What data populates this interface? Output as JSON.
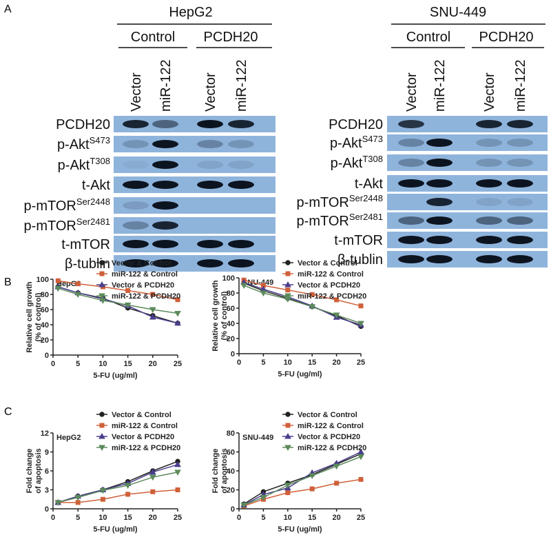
{
  "panel_labels": [
    "A",
    "B",
    "C"
  ],
  "blots": [
    {
      "cell_line": "HepG2",
      "groups": [
        "Control",
        "PCDH20"
      ],
      "lanes": [
        "Vector",
        "miR-122",
        "Vector",
        "miR-122"
      ],
      "rows": [
        {
          "label": "PCDH20"
        },
        {
          "label": "p-Akt",
          "sup": "S473"
        },
        {
          "label": "p-Akt",
          "sup": "T308"
        },
        {
          "label": "t-Akt"
        },
        {
          "label": "p-mTOR",
          "sup": "Ser2448"
        },
        {
          "label": "p-mTOR",
          "sup": "Ser2481"
        },
        {
          "label": "t-mTOR"
        },
        {
          "label": "β-tublin"
        }
      ]
    },
    {
      "cell_line": "SNU-449",
      "groups": [
        "Control",
        "PCDH20"
      ],
      "lanes": [
        "Vector",
        "miR-122",
        "Vector",
        "miR-122"
      ],
      "rows": [
        {
          "label": "PCDH20"
        },
        {
          "label": "p-Akt",
          "sup": "S473"
        },
        {
          "label": "p-Akt",
          "sup": "T308"
        },
        {
          "label": "t-Akt"
        },
        {
          "label": "p-mTOR",
          "sup": "Ser2448"
        },
        {
          "label": "p-mTOR",
          "sup": "Ser2481"
        },
        {
          "label": "t-mTOR"
        },
        {
          "label": "β-tublin"
        }
      ]
    }
  ],
  "chart_data": [
    {
      "type": "line",
      "title": "HepG2",
      "xlabel": "5-FU (ug/ml)",
      "ylabel": [
        "Relative cell growth",
        "(% of control)"
      ],
      "x": [
        1,
        5,
        10,
        15,
        20,
        25
      ],
      "xlim": [
        0,
        25
      ],
      "xticks": [
        0,
        5,
        10,
        15,
        20,
        25
      ],
      "ylim": [
        0,
        100
      ],
      "yticks": [
        0,
        20,
        40,
        60,
        80,
        100
      ],
      "series": [
        {
          "name": "Vector & Control",
          "color": "#222222",
          "values": [
            90,
            82,
            75,
            62,
            52,
            42
          ]
        },
        {
          "name": "miR-122 & Control",
          "color": "#d0603a",
          "values": [
            98,
            94,
            90,
            85,
            80,
            73
          ]
        },
        {
          "name": "Vector & PCDH20",
          "color": "#4a3f8c",
          "values": [
            90,
            82,
            74,
            65,
            50,
            42
          ]
        },
        {
          "name": "miR-122 & PCDH20",
          "color": "#5c8a5c",
          "values": [
            88,
            80,
            72,
            66,
            60,
            55
          ]
        }
      ]
    },
    {
      "type": "line",
      "title": "SNU-449",
      "xlabel": "5-FU (ug/ml)",
      "ylabel": [
        "Relative cell growth",
        "(% of control)"
      ],
      "x": [
        1,
        5,
        10,
        15,
        20,
        25
      ],
      "xlim": [
        0,
        25
      ],
      "xticks": [
        0,
        5,
        10,
        15,
        20,
        25
      ],
      "ylim": [
        0,
        100
      ],
      "yticks": [
        0,
        20,
        40,
        60,
        80,
        100
      ],
      "series": [
        {
          "name": "Vector & Control",
          "color": "#222222",
          "values": [
            93,
            83,
            73,
            62,
            50,
            36
          ]
        },
        {
          "name": "miR-122 & Control",
          "color": "#d0603a",
          "values": [
            97,
            90,
            84,
            78,
            71,
            63
          ]
        },
        {
          "name": "Vector & PCDH20",
          "color": "#4a3f8c",
          "values": [
            94,
            85,
            75,
            63,
            48,
            38
          ]
        },
        {
          "name": "miR-122 & PCDH20",
          "color": "#5c8a5c",
          "values": [
            90,
            80,
            72,
            62,
            51,
            40
          ]
        }
      ]
    },
    {
      "type": "line",
      "title": "HepG2",
      "xlabel": "5-FU (ug/ml)",
      "ylabel": [
        "Fold change",
        "of apoptosis"
      ],
      "x": [
        1,
        5,
        10,
        15,
        20,
        25
      ],
      "xlim": [
        0,
        25
      ],
      "xticks": [
        0,
        5,
        10,
        15,
        20,
        25
      ],
      "ylim": [
        0,
        12
      ],
      "yticks": [
        0,
        3,
        6,
        9,
        12
      ],
      "series": [
        {
          "name": "Vector & Control",
          "color": "#222222",
          "values": [
            1,
            2,
            3,
            4.3,
            6,
            7.5
          ]
        },
        {
          "name": "miR-122 & Control",
          "color": "#d0603a",
          "values": [
            1,
            1,
            1.5,
            2.3,
            2.7,
            3
          ]
        },
        {
          "name": "Vector & PCDH20",
          "color": "#4a3f8c",
          "values": [
            1,
            2,
            3,
            4,
            5.8,
            7
          ]
        },
        {
          "name": "miR-122 & PCDH20",
          "color": "#5c8a5c",
          "values": [
            1,
            1.8,
            2.9,
            3.7,
            5,
            5.8
          ]
        }
      ]
    },
    {
      "type": "line",
      "title": "SNU-449",
      "xlabel": "5-FU (ug/ml)",
      "ylabel": [
        "Fold change",
        "of apoptosis"
      ],
      "x": [
        1,
        5,
        10,
        15,
        20,
        25
      ],
      "xlim": [
        0,
        25
      ],
      "xticks": [
        0,
        5,
        10,
        15,
        20,
        25
      ],
      "ylim": [
        0,
        80
      ],
      "yticks": [
        0,
        20,
        40,
        60,
        80
      ],
      "series": [
        {
          "name": "Vector & Control",
          "color": "#222222",
          "values": [
            5,
            18,
            27,
            36,
            47,
            58
          ]
        },
        {
          "name": "miR-122 & Control",
          "color": "#d0603a",
          "values": [
            3,
            10,
            17,
            21,
            27,
            31
          ]
        },
        {
          "name": "Vector & PCDH20",
          "color": "#4a3f8c",
          "values": [
            4,
            15,
            22,
            38,
            48,
            60
          ]
        },
        {
          "name": "miR-122 & PCDH20",
          "color": "#5c8a5c",
          "values": [
            4,
            12,
            25,
            35,
            45,
            55
          ]
        }
      ]
    }
  ]
}
